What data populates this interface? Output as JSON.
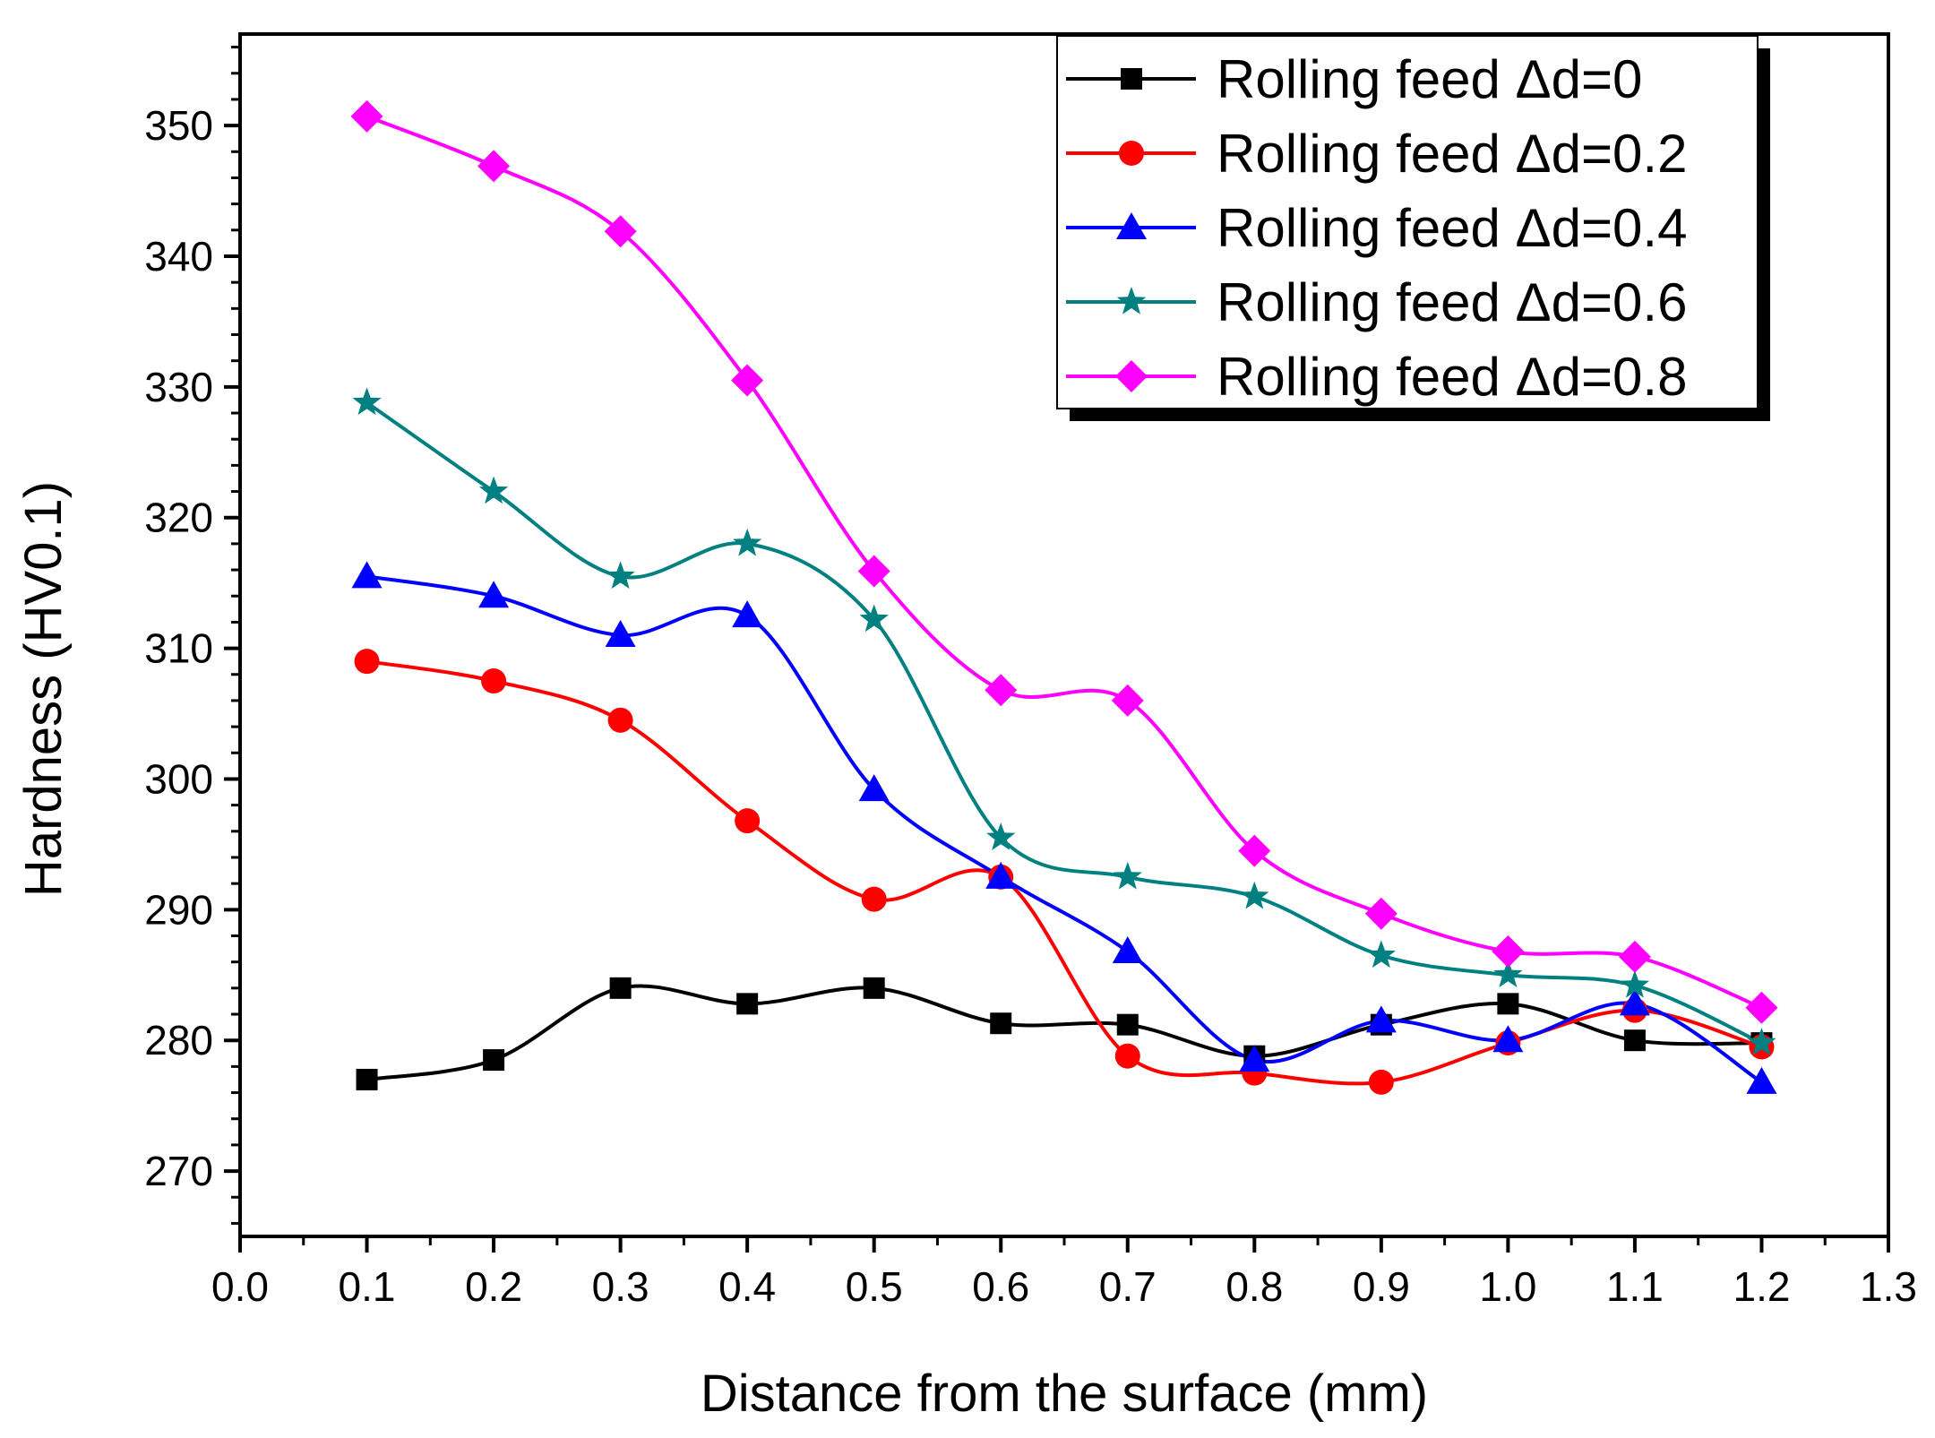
{
  "chart_data": {
    "type": "line",
    "xlabel": "Distance from the surface (mm)",
    "ylabel": "Hardness (HV0.1)",
    "xlim": [
      0.0,
      1.3
    ],
    "ylim": [
      265,
      357
    ],
    "x_ticks": [
      "0.0",
      "0.1",
      "0.2",
      "0.3",
      "0.4",
      "0.5",
      "0.6",
      "0.7",
      "0.8",
      "0.9",
      "1.0",
      "1.1",
      "1.2",
      "1.3"
    ],
    "y_ticks": [
      "270",
      "280",
      "290",
      "300",
      "310",
      "320",
      "330",
      "340",
      "350"
    ],
    "grid": false,
    "legend_position": "top-right",
    "x": [
      0.1,
      0.2,
      0.3,
      0.4,
      0.5,
      0.6,
      0.7,
      0.8,
      0.9,
      1.0,
      1.1,
      1.2
    ],
    "series": [
      {
        "name": "Rolling feed Δd=0",
        "color": "#000000",
        "marker": "square",
        "values": [
          277.0,
          278.5,
          284.0,
          282.8,
          284.0,
          281.3,
          281.2,
          278.8,
          281.2,
          282.8,
          280.0,
          279.8
        ]
      },
      {
        "name": "Rolling feed Δd=0.2",
        "color": "#ff0000",
        "marker": "circle",
        "values": [
          309.0,
          307.5,
          304.5,
          296.8,
          290.8,
          292.5,
          278.8,
          277.5,
          276.8,
          279.8,
          282.3,
          279.5
        ]
      },
      {
        "name": "Rolling feed Δd=0.4",
        "color": "#0000ff",
        "marker": "triangle",
        "values": [
          315.5,
          314.0,
          311.0,
          312.5,
          299.2,
          292.5,
          286.8,
          278.5,
          281.5,
          280.0,
          282.8,
          276.8
        ]
      },
      {
        "name": "Rolling feed Δd=0.6",
        "color": "#008080",
        "marker": "star",
        "values": [
          328.8,
          322.0,
          315.5,
          318.0,
          312.2,
          295.5,
          292.5,
          291.0,
          286.5,
          285.0,
          284.2,
          279.8
        ]
      },
      {
        "name": "Rolling feed Δd=0.8",
        "color": "#ff00ff",
        "marker": "diamond",
        "values": [
          350.7,
          346.9,
          341.9,
          330.5,
          315.9,
          306.8,
          306.0,
          294.5,
          289.7,
          286.8,
          286.4,
          282.5
        ]
      }
    ]
  }
}
